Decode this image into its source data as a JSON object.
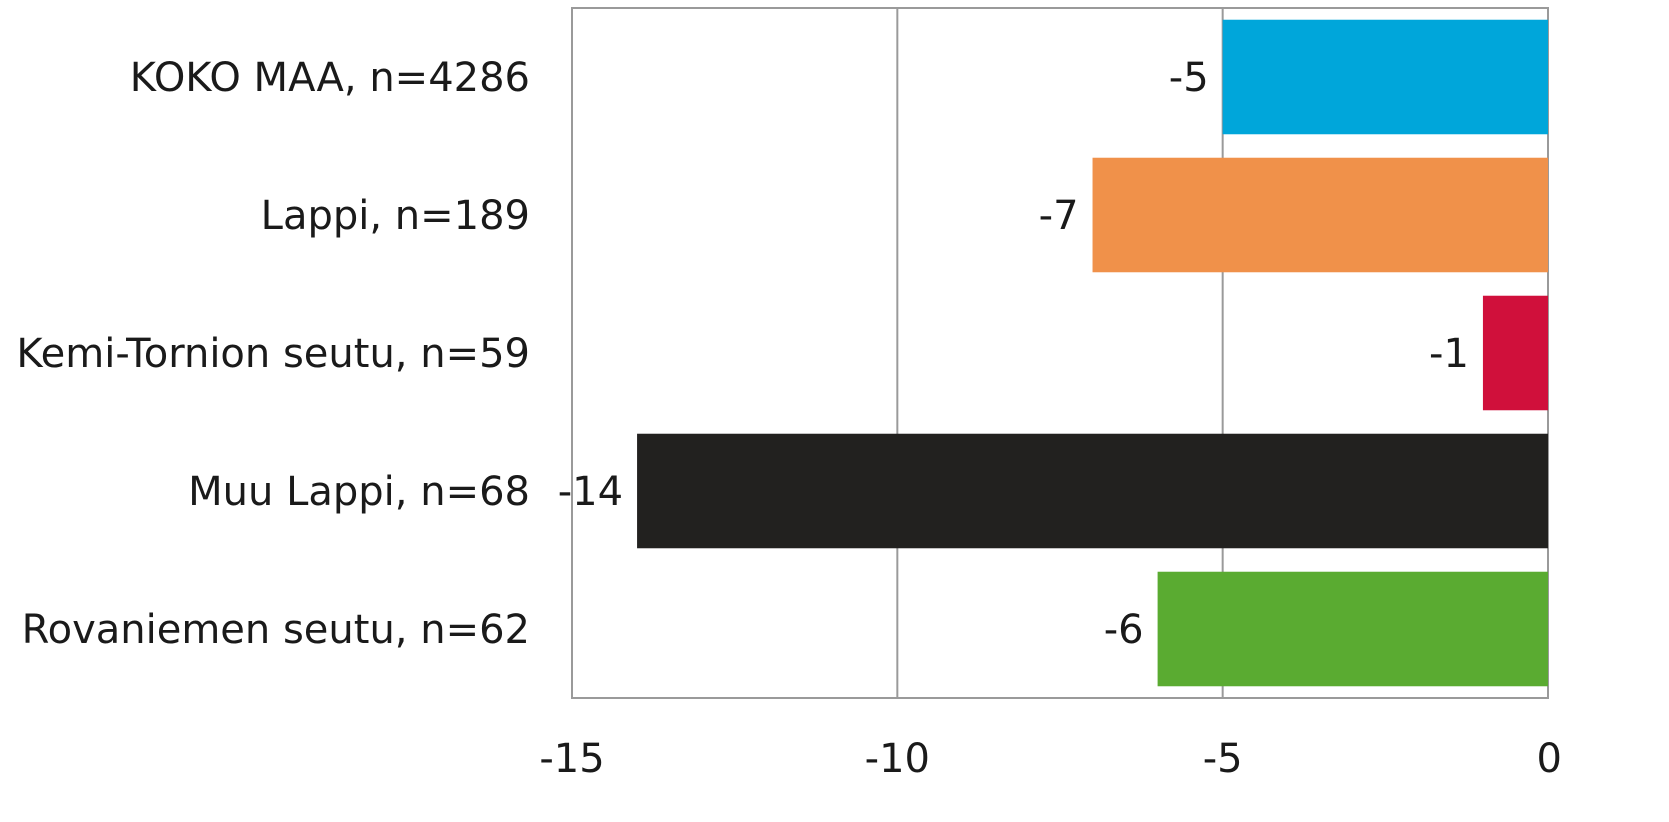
{
  "chart_data": {
    "type": "bar",
    "orientation": "horizontal",
    "categories": [
      "KOKO MAA, n=4286",
      "Lappi, n=189",
      "Kemi-Tornion seutu, n=59",
      "Muu Lappi, n=68",
      "Rovaniemen seutu, n=62"
    ],
    "values": [
      -5,
      -7,
      -1,
      -14,
      -6
    ],
    "colors": [
      "#00a6da",
      "#f0914a",
      "#d0103b",
      "#22211f",
      "#5aab31"
    ],
    "xlim": [
      -15,
      0
    ],
    "xticks": [
      -15,
      -10,
      -5,
      0
    ],
    "xtick_labels": [
      "-15",
      "-10",
      "-5",
      "0"
    ],
    "grid": "vertical",
    "legend": "none",
    "data_labels": [
      "-5",
      "-7",
      "-1",
      "-14",
      "-6"
    ]
  }
}
